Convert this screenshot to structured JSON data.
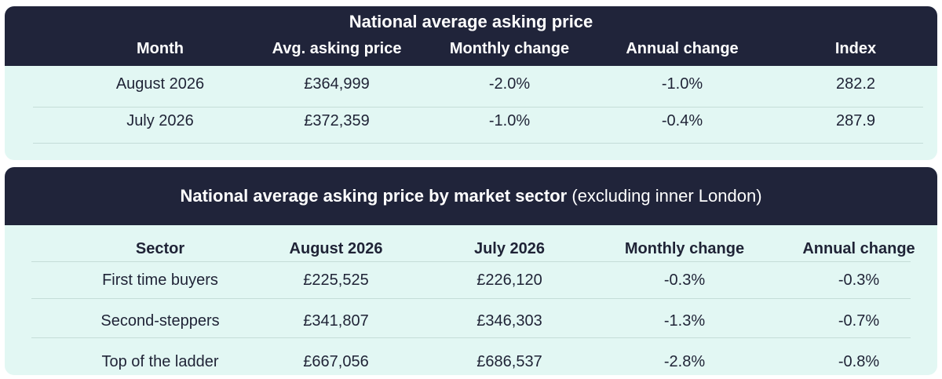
{
  "table1": {
    "title": "National average asking price",
    "headers": [
      "Month",
      "Avg. asking price",
      "Monthly change",
      "Annual change",
      "Index"
    ],
    "rows": [
      [
        "August 2026",
        "£364,999",
        "-2.0%",
        "-1.0%",
        "282.2"
      ],
      [
        "July 2026",
        "£372,359",
        "-1.0%",
        "-0.4%",
        "287.9"
      ]
    ]
  },
  "table2": {
    "title": "National average asking price by market sector",
    "title_suffix": " (excluding inner London)",
    "headers": [
      "Sector",
      "August 2026",
      "July 2026",
      "Monthly change",
      "Annual change"
    ],
    "rows": [
      [
        "First time buyers",
        "£225,525",
        "£226,120",
        "-0.3%",
        "-0.3%"
      ],
      [
        "Second-steppers",
        "£341,807",
        "£346,303",
        "-1.3%",
        "-0.7%"
      ],
      [
        "Top of the ladder",
        "£667,056",
        "£686,537",
        "-2.8%",
        "-0.8%"
      ]
    ]
  },
  "colors": {
    "header_bg": "#20243a",
    "panel_bg": "#e2f7f3",
    "separator": "#c5ddd8"
  }
}
